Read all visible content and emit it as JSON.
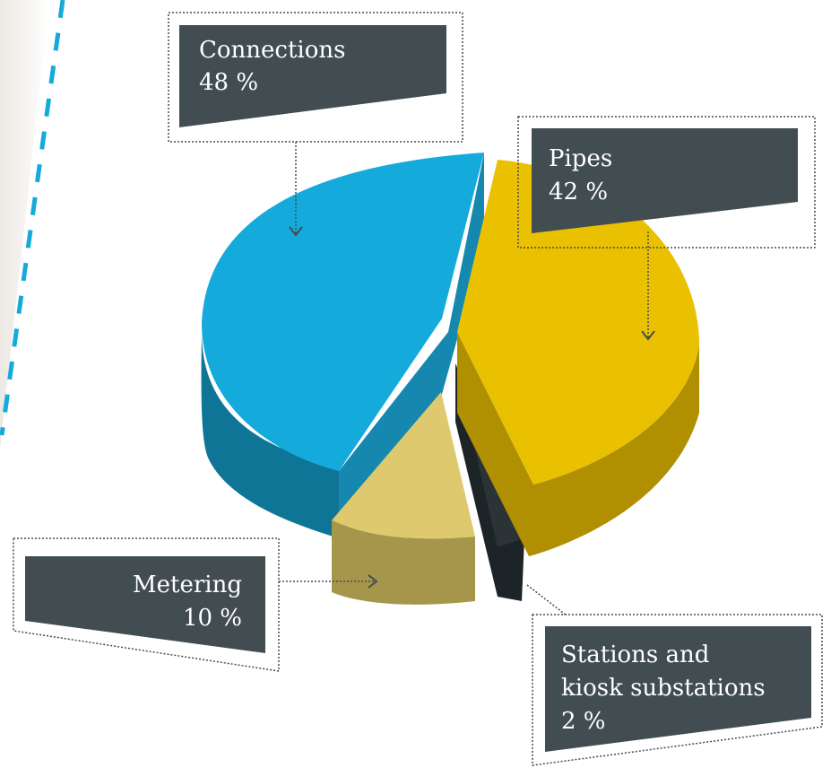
{
  "chart_data": {
    "type": "pie",
    "style": "3d-exploded",
    "categories": [
      "Connections",
      "Pipes",
      "Stations and kiosk substations",
      "Metering"
    ],
    "values": [
      48,
      42,
      2,
      10
    ],
    "unit": "%",
    "labels": {
      "connections": {
        "name": "Connections",
        "value": "48 %"
      },
      "pipes": {
        "name": "Pipes",
        "value": "42 %"
      },
      "metering": {
        "name": "Metering",
        "value": "10 %"
      },
      "stations": {
        "name_line1": "Stations and",
        "name_line2": "kiosk substations",
        "value": "2 %"
      }
    },
    "colors": {
      "connections_top": "#14AADB",
      "connections_side": "#0F7597",
      "pipes_top": "#EAC100",
      "pipes_side": "#B08F00",
      "metering_top": "#DFC96E",
      "metering_side": "#A6964B",
      "stations_top": "#2C3337",
      "stations_side": "#1D2428",
      "label_box": "#424D52",
      "accent_dash": "#14AADB"
    }
  }
}
